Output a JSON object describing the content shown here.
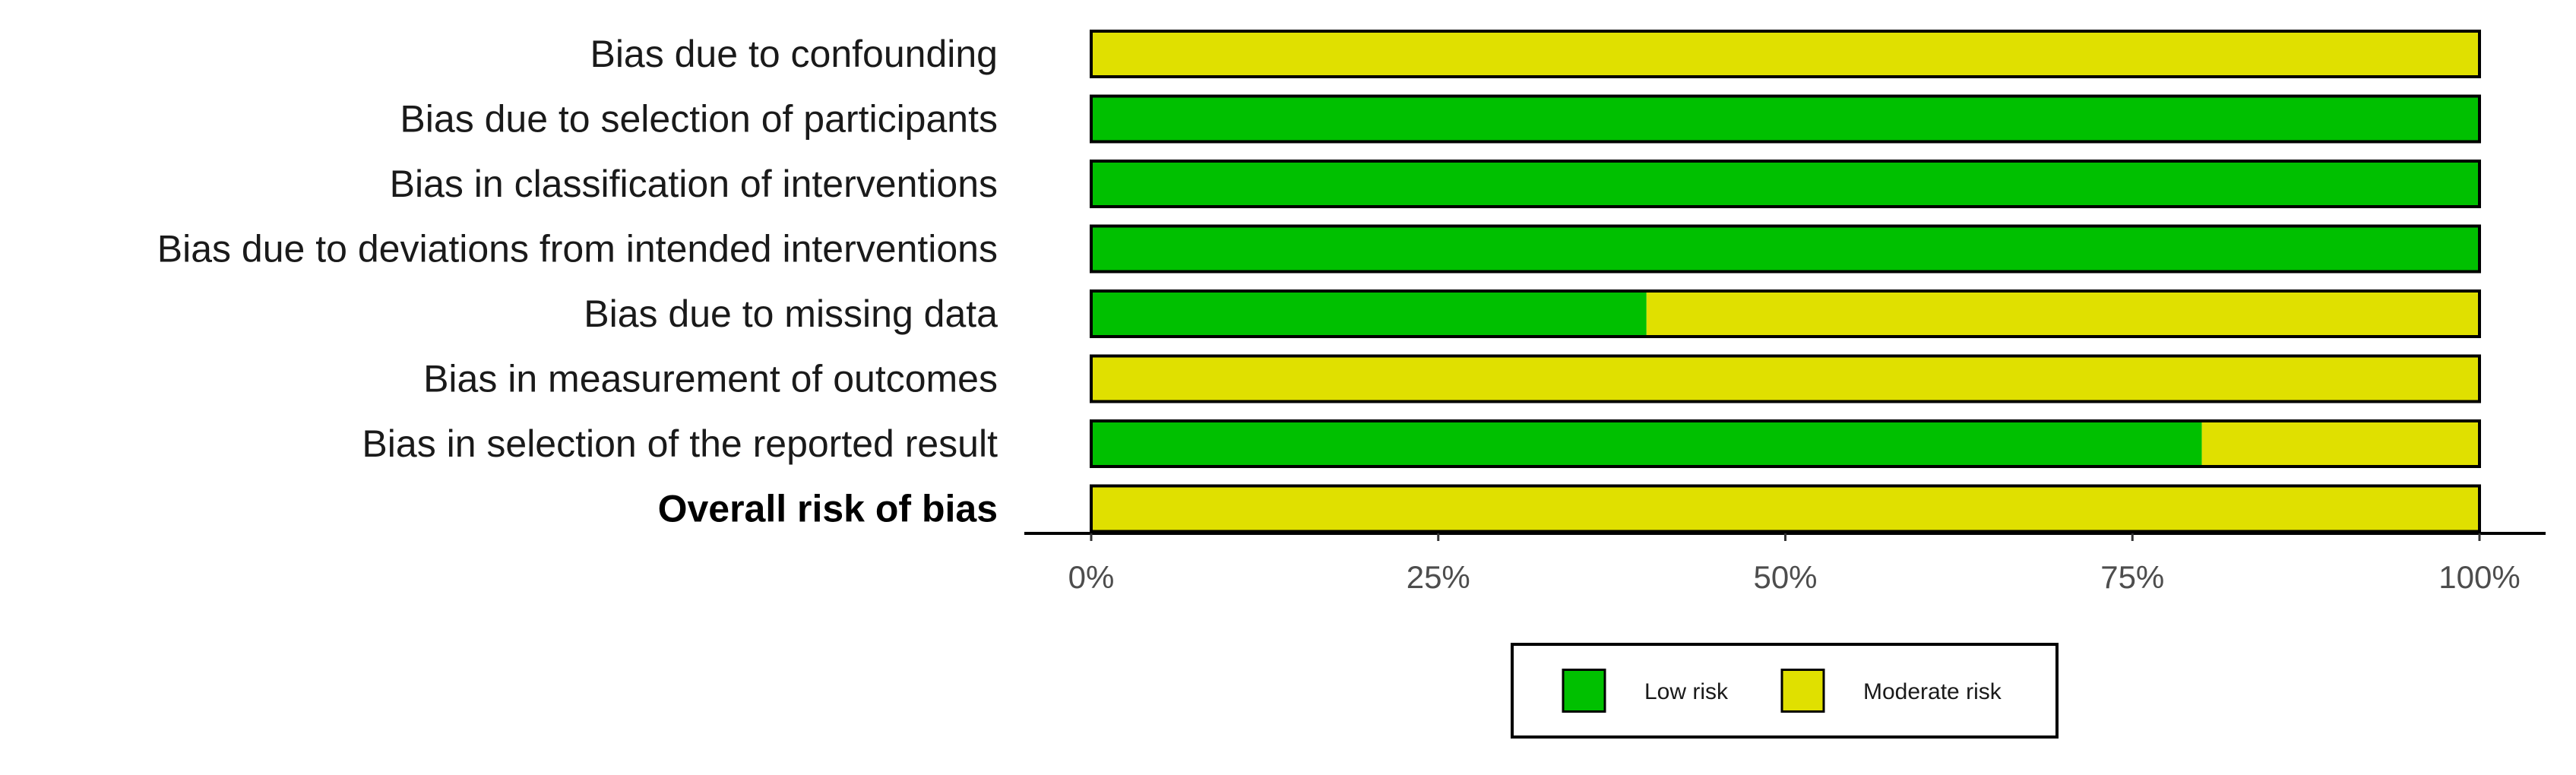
{
  "chart_data": {
    "type": "bar",
    "orientation": "horizontal",
    "stacked": true,
    "percent": true,
    "categories": [
      "Bias due to confounding",
      "Bias due to selection of participants",
      "Bias in classification of interventions",
      "Bias due to deviations from intended interventions",
      "Bias due to missing data",
      "Bias in measurement of outcomes",
      "Bias in selection of the reported result",
      "Overall risk of bias"
    ],
    "bold_categories": [
      "Overall risk of bias"
    ],
    "series": [
      {
        "name": "Low risk",
        "color": "#00c000",
        "values": [
          0,
          100,
          100,
          100,
          40,
          0,
          80,
          0
        ]
      },
      {
        "name": "Moderate risk",
        "color": "#e0e000",
        "values": [
          100,
          0,
          0,
          0,
          60,
          100,
          20,
          100
        ]
      }
    ],
    "xlim": [
      0,
      100
    ],
    "x_ticks": [
      0,
      25,
      50,
      75,
      100
    ],
    "x_tick_labels": [
      "0%",
      "25%",
      "50%",
      "75%",
      "100%"
    ],
    "title": "",
    "xlabel": "",
    "ylabel": "",
    "grid": false,
    "legend_position": "bottom"
  }
}
